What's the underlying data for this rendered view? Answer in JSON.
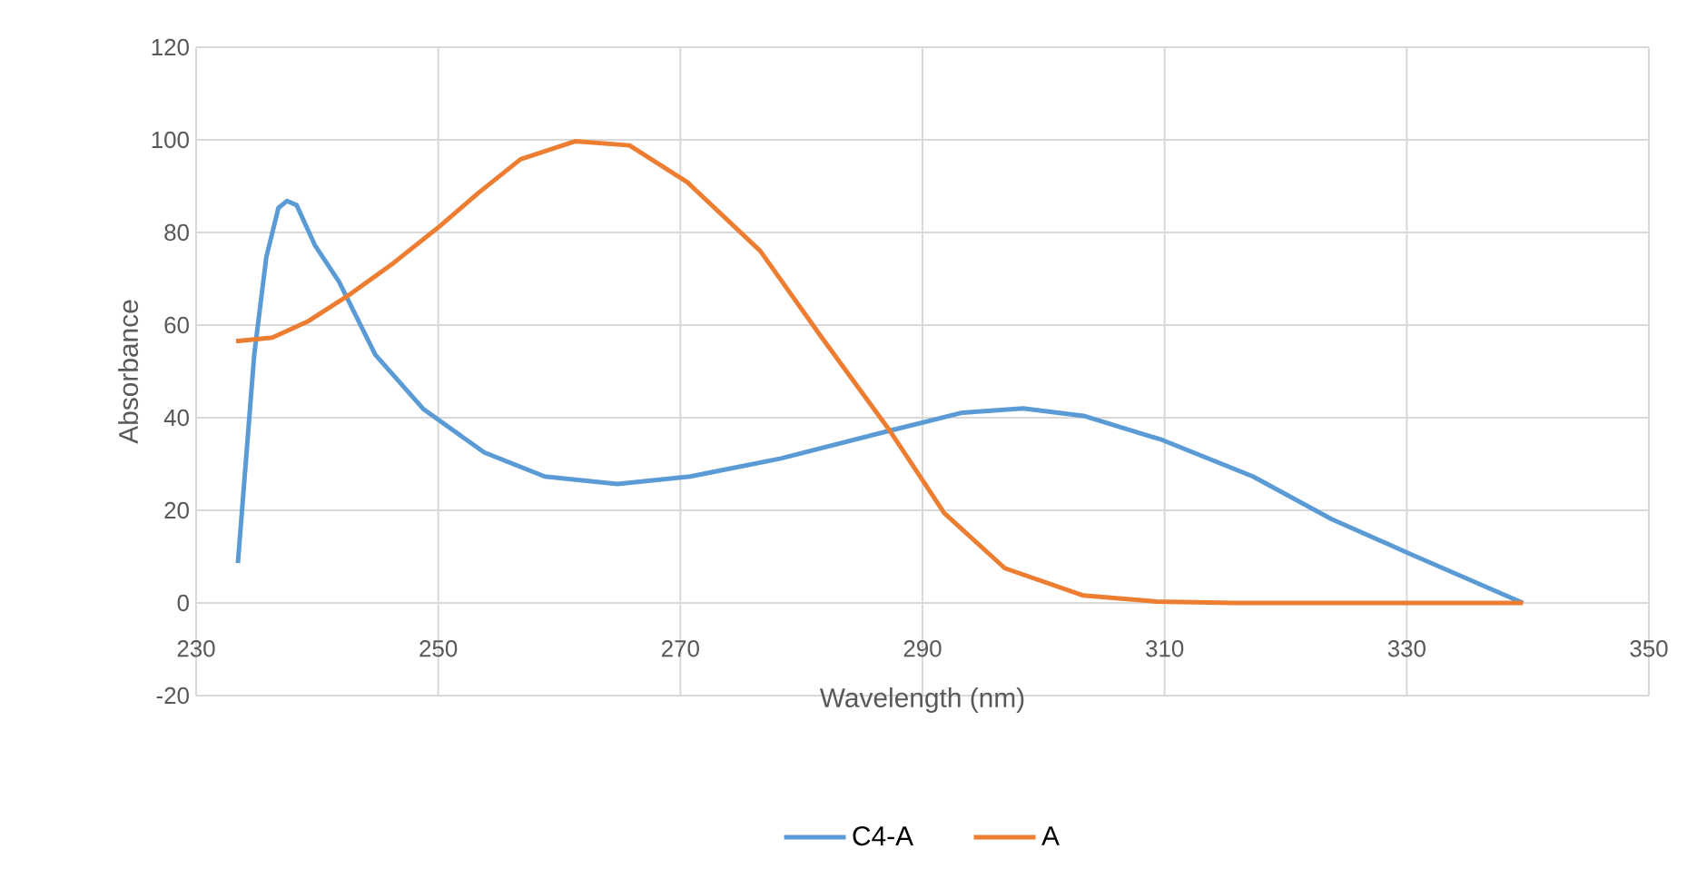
{
  "chart_data": {
    "type": "line",
    "xlabel": "Wavelength (nm)",
    "ylabel": "Absorbance",
    "xlim": [
      230,
      350
    ],
    "xticks": [
      230,
      250,
      270,
      290,
      310,
      330,
      350
    ],
    "ylim": [
      -20,
      120
    ],
    "yticks": [
      -20,
      0,
      20,
      40,
      60,
      80,
      100,
      120
    ],
    "grid": true,
    "legend": "bottom",
    "marker": "none",
    "line_style": "solid",
    "series": [
      {
        "name": "C4-A",
        "color": "#5b9bd5",
        "x": [
          233.45,
          234.8,
          235.8,
          236.8,
          237.5,
          238.3,
          239.8,
          241.8,
          243.3,
          244.8,
          248.8,
          253.8,
          258.8,
          264.8,
          270.8,
          278.3,
          287.3,
          293.3,
          298.3,
          303.3,
          309.8,
          317.3,
          323.8,
          330.1,
          339.6
        ],
        "values": [
          8.6,
          53.6,
          74.7,
          85.3,
          86.8,
          85.9,
          77.3,
          69.4,
          61.5,
          53.6,
          41.8,
          32.5,
          27.3,
          25.7,
          27.3,
          31.2,
          37.2,
          41.1,
          42.0,
          40.4,
          35.2,
          27.3,
          18.1,
          10.8,
          0
        ]
      },
      {
        "name": "A",
        "color": "#ed7d31",
        "x": [
          233.3,
          236.3,
          239.3,
          242.8,
          246.3,
          250.1,
          253.3,
          256.8,
          261.3,
          265.8,
          270.6,
          276.6,
          281.6,
          287.3,
          291.8,
          296.8,
          303.3,
          309.3,
          315.8,
          339.6
        ],
        "values": [
          56.5,
          57.3,
          60.9,
          66.8,
          73.4,
          81.3,
          88.5,
          95.8,
          99.7,
          98.8,
          90.8,
          76.0,
          57.6,
          37.2,
          19.4,
          7.5,
          1.6,
          0.3,
          0,
          0
        ]
      }
    ]
  }
}
